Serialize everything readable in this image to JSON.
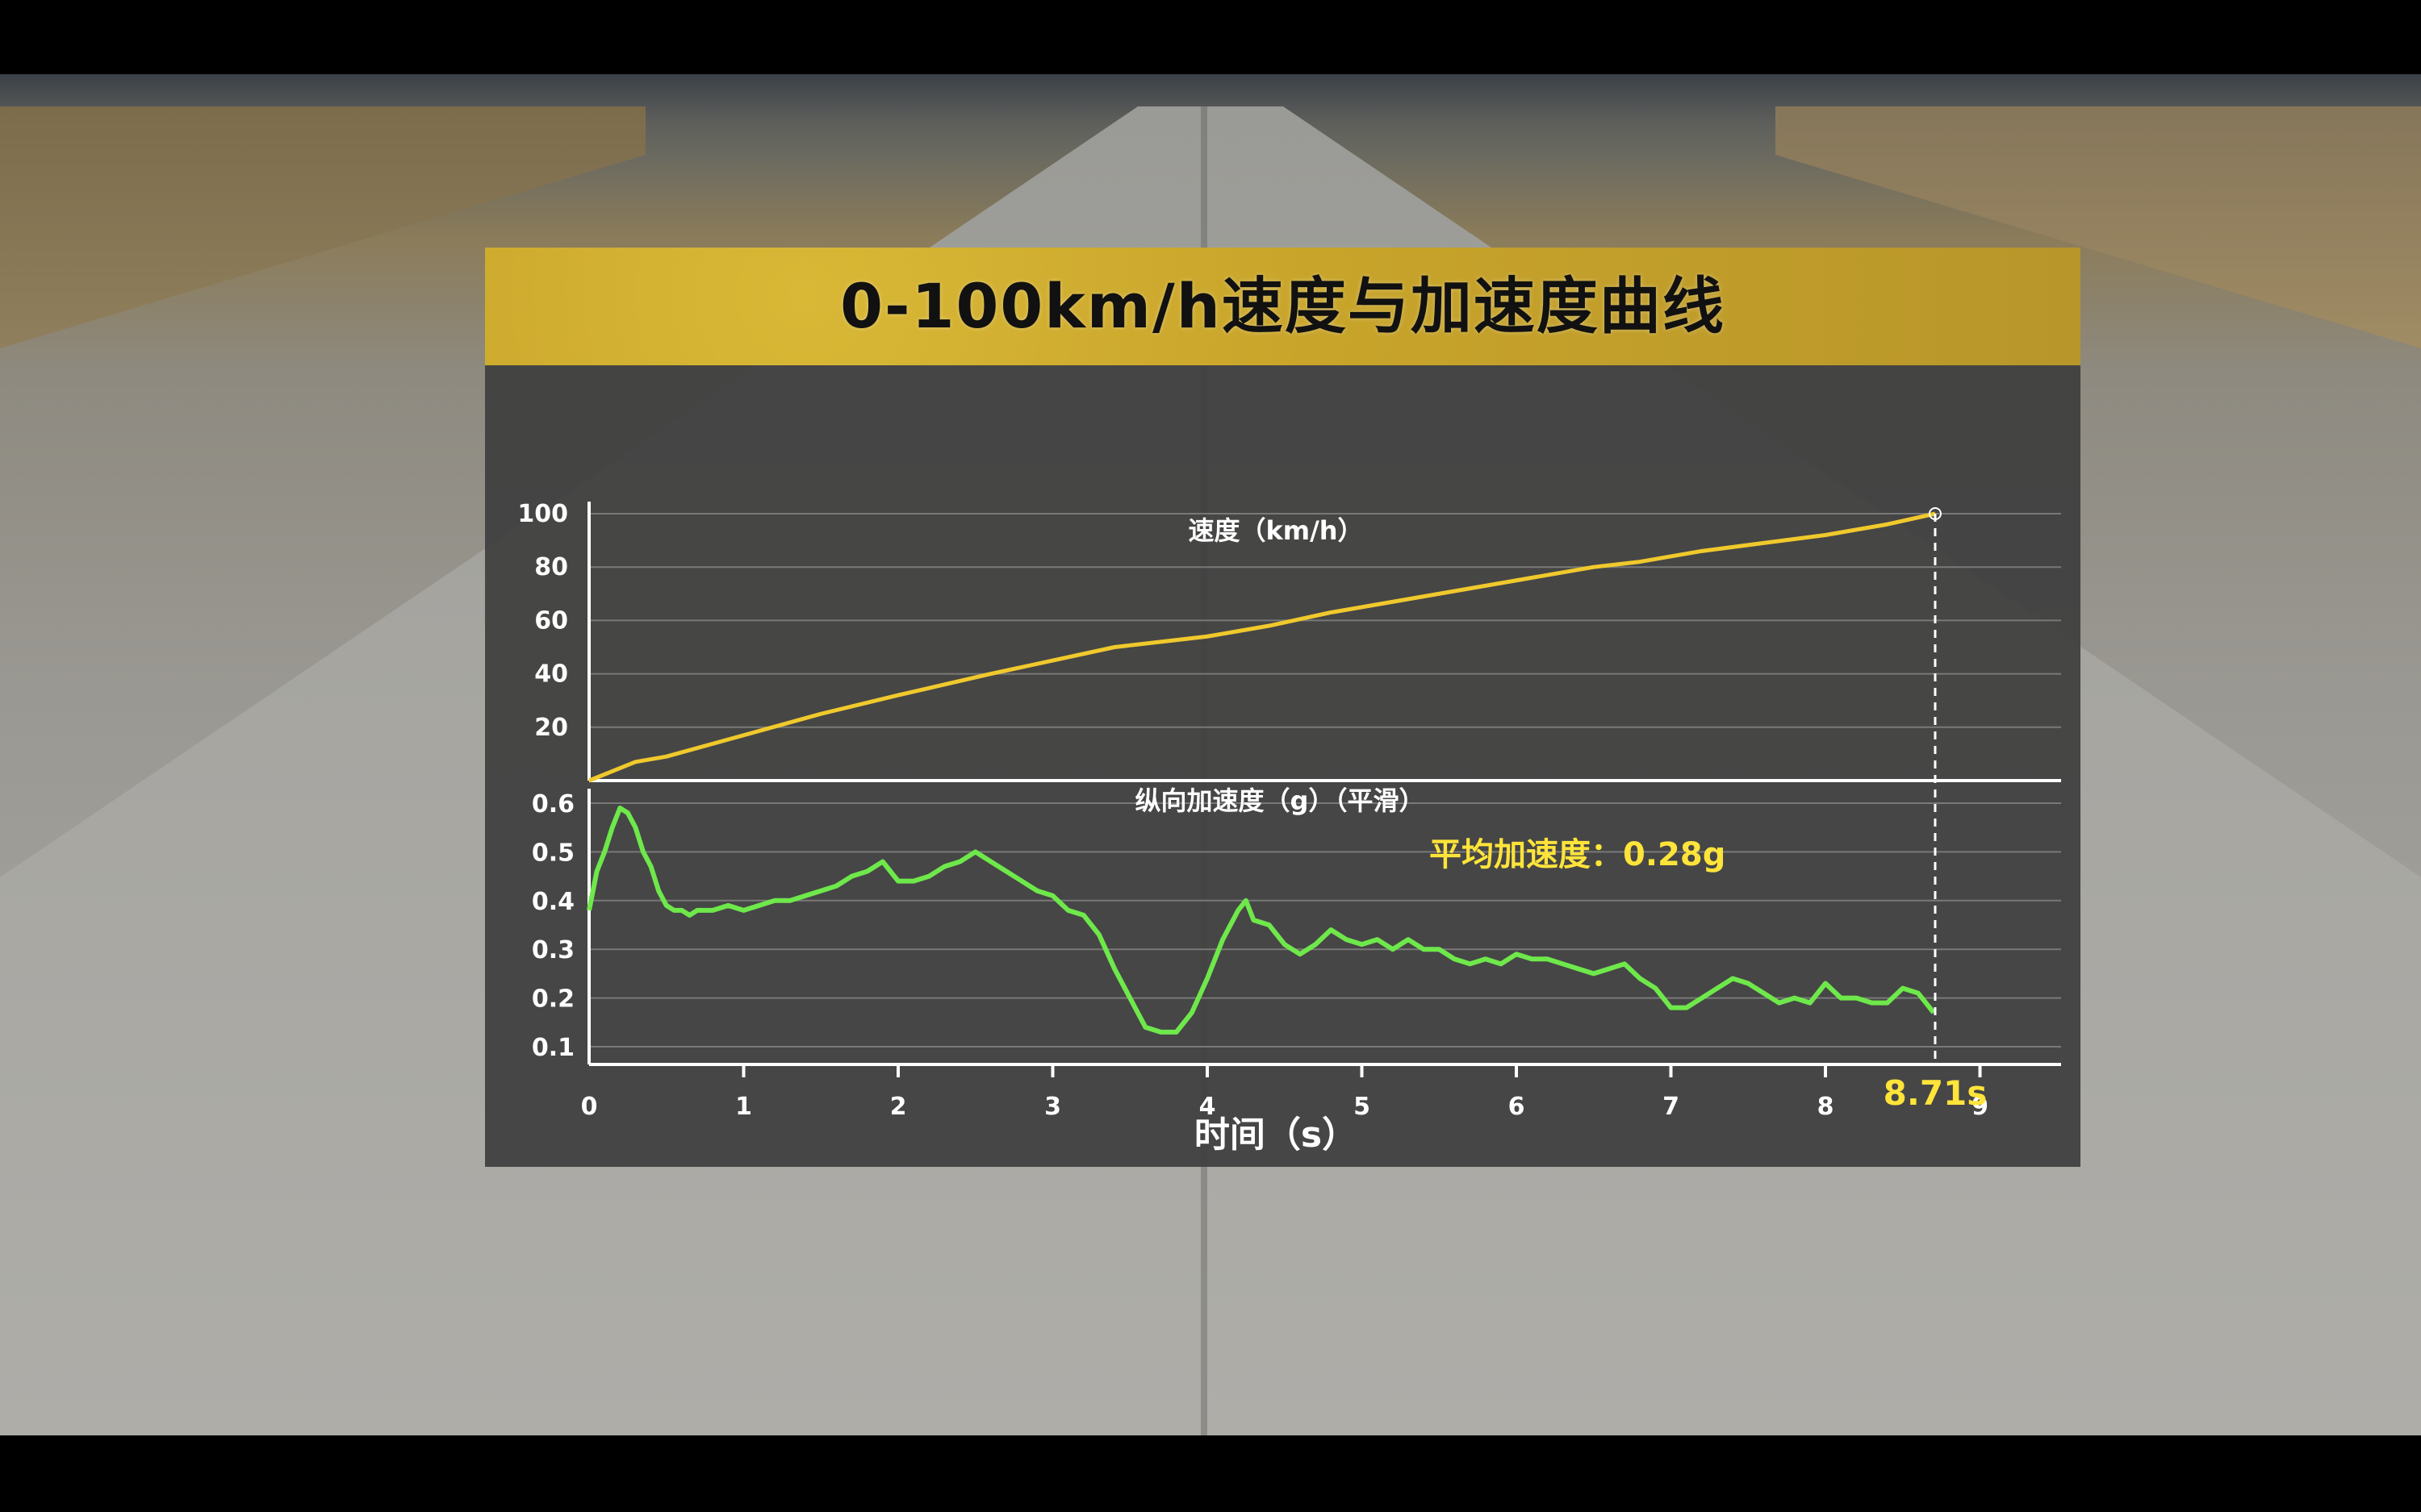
{
  "chart_data": {
    "title": "0-100km/h速度与加速度曲线",
    "xlabel": "时间（s）",
    "x_ticks": [
      0,
      1,
      2,
      3,
      4,
      5,
      6,
      7,
      8,
      9
    ],
    "xlim": [
      0,
      9.5
    ],
    "marker": {
      "x": 8.71,
      "label": "8.71s"
    },
    "colors": {
      "speed": "#f0c92c",
      "accel": "#6ee84a",
      "title_bar": "#c9a52c",
      "highlight": "#ffe43a"
    },
    "panels": [
      {
        "type": "line",
        "name": "speed",
        "label": "速度（km/h）",
        "y_ticks": [
          20,
          40,
          60,
          80,
          100
        ],
        "ylim": [
          0,
          100
        ],
        "grid": true,
        "x": [
          0,
          0.3,
          0.5,
          1,
          1.5,
          2,
          2.3,
          2.6,
          3,
          3.4,
          3.7,
          4,
          4.4,
          4.8,
          5.2,
          5.6,
          6,
          6.5,
          6.8,
          7.2,
          7.6,
          8,
          8.4,
          8.71
        ],
        "y": [
          0,
          7,
          9,
          17,
          25,
          32,
          36,
          40,
          45,
          50,
          52,
          54,
          58,
          63,
          67,
          71,
          75,
          80,
          82,
          86,
          89,
          92,
          96,
          100
        ]
      },
      {
        "type": "line",
        "name": "accel",
        "label": "纵向加速度（g）（平滑）",
        "y_ticks": [
          0.1,
          0.2,
          0.3,
          0.4,
          0.5,
          0.6
        ],
        "ylim": [
          0.05,
          0.6
        ],
        "grid": true,
        "annotation": "平均加速度：0.28g",
        "x": [
          0,
          0.05,
          0.1,
          0.15,
          0.2,
          0.25,
          0.3,
          0.35,
          0.4,
          0.45,
          0.5,
          0.55,
          0.6,
          0.65,
          0.7,
          0.8,
          0.9,
          1.0,
          1.1,
          1.2,
          1.3,
          1.4,
          1.5,
          1.6,
          1.7,
          1.8,
          1.9,
          2.0,
          2.1,
          2.2,
          2.3,
          2.4,
          2.5,
          2.55,
          2.6,
          2.7,
          2.8,
          2.9,
          3.0,
          3.1,
          3.2,
          3.3,
          3.4,
          3.5,
          3.6,
          3.7,
          3.8,
          3.9,
          4.0,
          4.1,
          4.2,
          4.25,
          4.3,
          4.4,
          4.5,
          4.6,
          4.7,
          4.8,
          4.9,
          5.0,
          5.1,
          5.2,
          5.3,
          5.4,
          5.5,
          5.6,
          5.7,
          5.8,
          5.9,
          6.0,
          6.1,
          6.2,
          6.3,
          6.4,
          6.5,
          6.6,
          6.7,
          6.8,
          6.9,
          7.0,
          7.1,
          7.2,
          7.3,
          7.4,
          7.5,
          7.6,
          7.7,
          7.8,
          7.9,
          8.0,
          8.1,
          8.2,
          8.3,
          8.4,
          8.5,
          8.6,
          8.7
        ],
        "y": [
          0.38,
          0.46,
          0.5,
          0.55,
          0.59,
          0.58,
          0.55,
          0.5,
          0.47,
          0.42,
          0.39,
          0.38,
          0.38,
          0.37,
          0.38,
          0.38,
          0.39,
          0.38,
          0.39,
          0.4,
          0.4,
          0.41,
          0.42,
          0.43,
          0.45,
          0.46,
          0.48,
          0.44,
          0.44,
          0.45,
          0.47,
          0.48,
          0.5,
          0.49,
          0.48,
          0.46,
          0.44,
          0.42,
          0.41,
          0.38,
          0.37,
          0.33,
          0.26,
          0.2,
          0.14,
          0.13,
          0.13,
          0.17,
          0.24,
          0.32,
          0.38,
          0.4,
          0.36,
          0.35,
          0.31,
          0.29,
          0.31,
          0.34,
          0.32,
          0.31,
          0.32,
          0.3,
          0.32,
          0.3,
          0.3,
          0.28,
          0.27,
          0.28,
          0.27,
          0.29,
          0.28,
          0.28,
          0.27,
          0.26,
          0.25,
          0.26,
          0.27,
          0.24,
          0.22,
          0.18,
          0.18,
          0.2,
          0.22,
          0.24,
          0.23,
          0.21,
          0.19,
          0.2,
          0.19,
          0.23,
          0.2,
          0.2,
          0.19,
          0.19,
          0.22,
          0.21,
          0.17
        ]
      }
    ]
  }
}
